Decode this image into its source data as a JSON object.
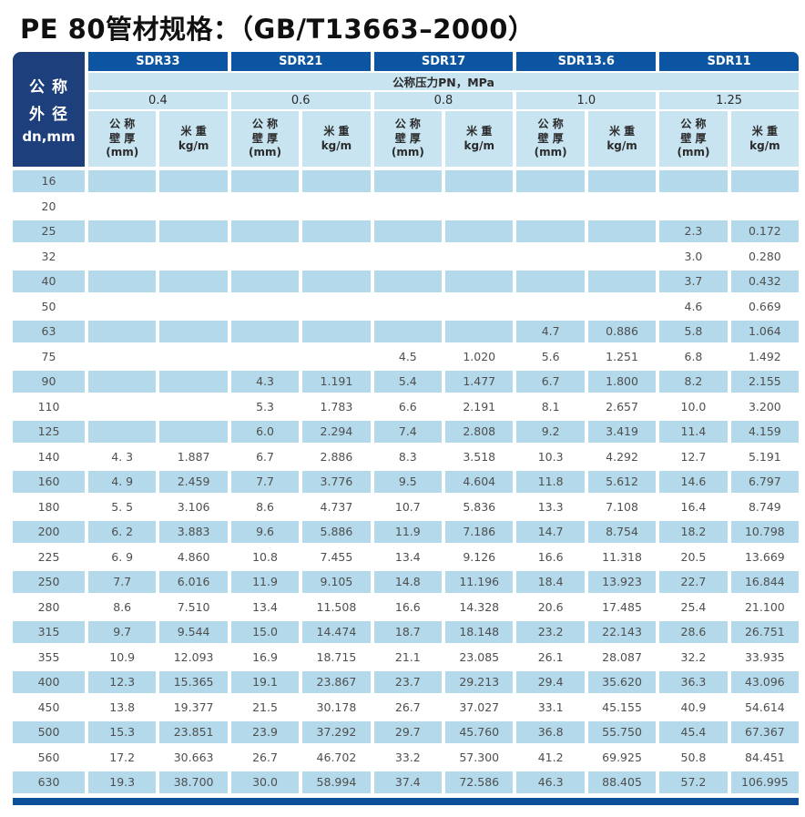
{
  "page": {
    "title": "PE 80管材规格：（GB/T13663–2000）"
  },
  "colors": {
    "header_navy": "#0b55a2",
    "corner_navy": "#1d3f7b",
    "bottom_bar_navy": "#0d4f98",
    "header_light_blue": "#c8e4f1",
    "row_stripe_blue": "#b3d9ea",
    "data_text": "#4f4f4f"
  },
  "table": {
    "corner": {
      "line1": "公 称",
      "line2": "外 径",
      "line3": "dn,mm"
    },
    "sdr_groups": [
      "SDR33",
      "SDR21",
      "SDR17",
      "SDR13.6",
      "SDR11"
    ],
    "pressure_label": "公称压力PN，MPa",
    "pressures": [
      "0.4",
      "0.6",
      "0.8",
      "1.0",
      "1.25"
    ],
    "col_headers": {
      "wall": "公 称\n壁 厚\n(mm)",
      "weight": "米 重\nkg/m"
    },
    "rows": [
      {
        "dn": "16",
        "cells": [
          "",
          "",
          "",
          "",
          "",
          "",
          "",
          "",
          "",
          ""
        ]
      },
      {
        "dn": "20",
        "cells": [
          "",
          "",
          "",
          "",
          "",
          "",
          "",
          "",
          "",
          ""
        ]
      },
      {
        "dn": "25",
        "cells": [
          "",
          "",
          "",
          "",
          "",
          "",
          "",
          "",
          "2.3",
          "0.172"
        ]
      },
      {
        "dn": "32",
        "cells": [
          "",
          "",
          "",
          "",
          "",
          "",
          "",
          "",
          "3.0",
          "0.280"
        ]
      },
      {
        "dn": "40",
        "cells": [
          "",
          "",
          "",
          "",
          "",
          "",
          "",
          "",
          "3.7",
          "0.432"
        ]
      },
      {
        "dn": "50",
        "cells": [
          "",
          "",
          "",
          "",
          "",
          "",
          "",
          "",
          "4.6",
          "0.669"
        ]
      },
      {
        "dn": "63",
        "cells": [
          "",
          "",
          "",
          "",
          "",
          "",
          "4.7",
          "0.886",
          "5.8",
          "1.064"
        ]
      },
      {
        "dn": "75",
        "cells": [
          "",
          "",
          "",
          "",
          "4.5",
          "1.020",
          "5.6",
          "1.251",
          "6.8",
          "1.492"
        ]
      },
      {
        "dn": "90",
        "cells": [
          "",
          "",
          "4.3",
          "1.191",
          "5.4",
          "1.477",
          "6.7",
          "1.800",
          "8.2",
          "2.155"
        ]
      },
      {
        "dn": "110",
        "cells": [
          "",
          "",
          "5.3",
          "1.783",
          "6.6",
          "2.191",
          "8.1",
          "2.657",
          "10.0",
          "3.200"
        ]
      },
      {
        "dn": "125",
        "cells": [
          "",
          "",
          "6.0",
          "2.294",
          "7.4",
          "2.808",
          "9.2",
          "3.419",
          "11.4",
          "4.159"
        ]
      },
      {
        "dn": "140",
        "cells": [
          "4. 3",
          "1.887",
          "6.7",
          "2.886",
          "8.3",
          "3.518",
          "10.3",
          "4.292",
          "12.7",
          "5.191"
        ]
      },
      {
        "dn": "160",
        "cells": [
          "4. 9",
          "2.459",
          "7.7",
          "3.776",
          "9.5",
          "4.604",
          "11.8",
          "5.612",
          "14.6",
          "6.797"
        ]
      },
      {
        "dn": "180",
        "cells": [
          "5. 5",
          "3.106",
          "8.6",
          "4.737",
          "10.7",
          "5.836",
          "13.3",
          "7.108",
          "16.4",
          "8.749"
        ]
      },
      {
        "dn": "200",
        "cells": [
          "6. 2",
          "3.883",
          "9.6",
          "5.886",
          "11.9",
          "7.186",
          "14.7",
          "8.754",
          "18.2",
          "10.798"
        ]
      },
      {
        "dn": "225",
        "cells": [
          "6. 9",
          "4.860",
          "10.8",
          "7.455",
          "13.4",
          "9.126",
          "16.6",
          "11.318",
          "20.5",
          "13.669"
        ]
      },
      {
        "dn": "250",
        "cells": [
          "7.7",
          "6.016",
          "11.9",
          "9.105",
          "14.8",
          "11.196",
          "18.4",
          "13.923",
          "22.7",
          "16.844"
        ]
      },
      {
        "dn": "280",
        "cells": [
          "8.6",
          "7.510",
          "13.4",
          "11.508",
          "16.6",
          "14.328",
          "20.6",
          "17.485",
          "25.4",
          "21.100"
        ]
      },
      {
        "dn": "315",
        "cells": [
          "9.7",
          "9.544",
          "15.0",
          "14.474",
          "18.7",
          "18.148",
          "23.2",
          "22.143",
          "28.6",
          "26.751"
        ]
      },
      {
        "dn": "355",
        "cells": [
          "10.9",
          "12.093",
          "16.9",
          "18.715",
          "21.1",
          "23.085",
          "26.1",
          "28.087",
          "32.2",
          "33.935"
        ]
      },
      {
        "dn": "400",
        "cells": [
          "12.3",
          "15.365",
          "19.1",
          "23.867",
          "23.7",
          "29.213",
          "29.4",
          "35.620",
          "36.3",
          "43.096"
        ]
      },
      {
        "dn": "450",
        "cells": [
          "13.8",
          "19.377",
          "21.5",
          "30.178",
          "26.7",
          "37.027",
          "33.1",
          "45.155",
          "40.9",
          "54.614"
        ]
      },
      {
        "dn": "500",
        "cells": [
          "15.3",
          "23.851",
          "23.9",
          "37.292",
          "29.7",
          "45.760",
          "36.8",
          "55.750",
          "45.4",
          "67.367"
        ]
      },
      {
        "dn": "560",
        "cells": [
          "17.2",
          "30.663",
          "26.7",
          "46.702",
          "33.2",
          "57.300",
          "41.2",
          "69.925",
          "50.8",
          "84.451"
        ]
      },
      {
        "dn": "630",
        "cells": [
          "19.3",
          "38.700",
          "30.0",
          "58.994",
          "37.4",
          "72.586",
          "46.3",
          "88.405",
          "57.2",
          "106.995"
        ]
      }
    ]
  }
}
